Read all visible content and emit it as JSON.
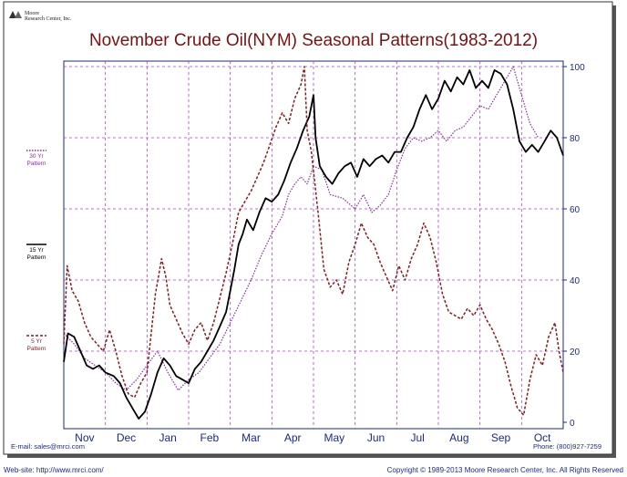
{
  "logo": {
    "line1": "Moore",
    "line2": "Research Center, Inc."
  },
  "chart_data": {
    "type": "line",
    "title": "November Crude Oil(NYM) Seasonal Patterns(1983-2012)",
    "months": [
      "Nov",
      "Dec",
      "Jan",
      "Feb",
      "Mar",
      "Apr",
      "May",
      "Jun",
      "Jul",
      "Aug",
      "Sep",
      "Oct"
    ],
    "y_ticks": [
      "100",
      "80",
      "60",
      "40",
      "20",
      "0"
    ],
    "ylim": [
      0,
      100
    ],
    "grid": true,
    "series": [
      {
        "name": "30 Yr Pattern",
        "legend_lines": [
          "30 Yr",
          "Pattern"
        ],
        "color": "#8a2aa8",
        "style": "dotted",
        "points": [
          [
            0,
            25
          ],
          [
            0.25,
            22
          ],
          [
            0.5,
            18
          ],
          [
            0.75,
            16
          ],
          [
            1,
            14
          ],
          [
            1.25,
            11
          ],
          [
            1.5,
            9
          ],
          [
            1.75,
            12
          ],
          [
            2,
            16
          ],
          [
            2.25,
            20
          ],
          [
            2.5,
            14
          ],
          [
            2.75,
            9
          ],
          [
            3,
            12
          ],
          [
            3.25,
            14
          ],
          [
            3.5,
            18
          ],
          [
            3.75,
            22
          ],
          [
            4,
            28
          ],
          [
            4.25,
            34
          ],
          [
            4.5,
            40
          ],
          [
            4.75,
            47
          ],
          [
            5,
            53
          ],
          [
            5.25,
            58
          ],
          [
            5.4,
            64
          ],
          [
            5.55,
            67
          ],
          [
            5.7,
            69
          ],
          [
            5.85,
            67
          ],
          [
            6,
            72
          ],
          [
            6.2,
            71
          ],
          [
            6.4,
            64
          ],
          [
            6.7,
            63
          ],
          [
            7,
            60
          ],
          [
            7.2,
            64
          ],
          [
            7.4,
            59
          ],
          [
            7.6,
            61
          ],
          [
            7.8,
            64
          ],
          [
            8,
            71
          ],
          [
            8.2,
            77
          ],
          [
            8.4,
            80
          ],
          [
            8.6,
            79
          ],
          [
            8.8,
            80
          ],
          [
            9,
            82
          ],
          [
            9.2,
            79
          ],
          [
            9.4,
            82
          ],
          [
            9.6,
            83
          ],
          [
            9.8,
            86
          ],
          [
            10,
            89
          ],
          [
            10.2,
            88
          ],
          [
            10.4,
            92
          ],
          [
            10.6,
            96
          ],
          [
            10.8,
            100
          ],
          [
            11,
            92
          ],
          [
            11.2,
            84
          ],
          [
            11.4,
            80
          ]
        ]
      },
      {
        "name": "15 Yr Pattern",
        "legend_lines": [
          "15 Yr",
          "Pattern"
        ],
        "color": "#000000",
        "style": "solid",
        "points": [
          [
            0,
            17
          ],
          [
            0.1,
            25
          ],
          [
            0.25,
            24
          ],
          [
            0.4,
            20
          ],
          [
            0.55,
            16
          ],
          [
            0.7,
            15
          ],
          [
            0.85,
            16
          ],
          [
            1,
            14
          ],
          [
            1.2,
            13
          ],
          [
            1.35,
            11
          ],
          [
            1.5,
            7
          ],
          [
            1.65,
            4
          ],
          [
            1.8,
            1
          ],
          [
            1.95,
            3
          ],
          [
            2.1,
            8
          ],
          [
            2.25,
            14
          ],
          [
            2.4,
            18
          ],
          [
            2.55,
            16
          ],
          [
            2.7,
            13
          ],
          [
            2.85,
            12
          ],
          [
            3,
            11
          ],
          [
            3.15,
            15
          ],
          [
            3.3,
            17
          ],
          [
            3.45,
            20
          ],
          [
            3.6,
            23
          ],
          [
            3.75,
            27
          ],
          [
            3.9,
            31
          ],
          [
            4,
            37
          ],
          [
            4.1,
            43
          ],
          [
            4.2,
            50
          ],
          [
            4.3,
            53
          ],
          [
            4.4,
            57
          ],
          [
            4.55,
            54
          ],
          [
            4.7,
            59
          ],
          [
            4.85,
            63
          ],
          [
            5,
            62
          ],
          [
            5.15,
            64
          ],
          [
            5.3,
            68
          ],
          [
            5.45,
            73
          ],
          [
            5.6,
            77
          ],
          [
            5.75,
            82
          ],
          [
            5.9,
            86
          ],
          [
            6.0,
            92
          ],
          [
            6.05,
            80
          ],
          [
            6.15,
            72
          ],
          [
            6.3,
            69
          ],
          [
            6.45,
            67
          ],
          [
            6.6,
            70
          ],
          [
            6.75,
            72
          ],
          [
            6.9,
            73
          ],
          [
            7.05,
            69
          ],
          [
            7.2,
            74
          ],
          [
            7.35,
            72
          ],
          [
            7.5,
            74
          ],
          [
            7.65,
            75
          ],
          [
            7.8,
            73
          ],
          [
            7.95,
            76
          ],
          [
            8.1,
            76
          ],
          [
            8.25,
            80
          ],
          [
            8.4,
            83
          ],
          [
            8.55,
            88
          ],
          [
            8.7,
            92
          ],
          [
            8.85,
            88
          ],
          [
            9,
            91
          ],
          [
            9.15,
            96
          ],
          [
            9.3,
            93
          ],
          [
            9.45,
            97
          ],
          [
            9.6,
            95
          ],
          [
            9.75,
            99
          ],
          [
            9.9,
            94
          ],
          [
            10.05,
            96
          ],
          [
            10.2,
            94
          ],
          [
            10.35,
            99
          ],
          [
            10.5,
            98
          ],
          [
            10.65,
            95
          ],
          [
            10.8,
            88
          ],
          [
            10.95,
            79
          ],
          [
            11.1,
            76
          ],
          [
            11.25,
            78
          ],
          [
            11.4,
            76
          ],
          [
            11.55,
            79
          ],
          [
            11.7,
            82
          ],
          [
            11.85,
            80
          ],
          [
            12,
            75
          ]
        ]
      },
      {
        "name": "5 Yr Pattern",
        "legend_lines": [
          "5 Yr",
          "Pattern"
        ],
        "color": "#8b1a1a",
        "style": "dashed",
        "points": [
          [
            0,
            22
          ],
          [
            0.08,
            44
          ],
          [
            0.2,
            37
          ],
          [
            0.35,
            34
          ],
          [
            0.5,
            28
          ],
          [
            0.65,
            24
          ],
          [
            0.8,
            22
          ],
          [
            0.95,
            20
          ],
          [
            1.1,
            26
          ],
          [
            1.25,
            20
          ],
          [
            1.4,
            13
          ],
          [
            1.55,
            8
          ],
          [
            1.7,
            7
          ],
          [
            1.85,
            11
          ],
          [
            2,
            14
          ],
          [
            2.1,
            25
          ],
          [
            2.2,
            36
          ],
          [
            2.35,
            46
          ],
          [
            2.45,
            41
          ],
          [
            2.55,
            33
          ],
          [
            2.7,
            29
          ],
          [
            2.85,
            25
          ],
          [
            3,
            22
          ],
          [
            3.15,
            26
          ],
          [
            3.3,
            28
          ],
          [
            3.45,
            23
          ],
          [
            3.6,
            28
          ],
          [
            3.75,
            35
          ],
          [
            3.9,
            42
          ],
          [
            4.05,
            50
          ],
          [
            4.2,
            59
          ],
          [
            4.35,
            62
          ],
          [
            4.5,
            65
          ],
          [
            4.65,
            69
          ],
          [
            4.8,
            73
          ],
          [
            4.95,
            78
          ],
          [
            5.1,
            83
          ],
          [
            5.25,
            87
          ],
          [
            5.4,
            84
          ],
          [
            5.55,
            91
          ],
          [
            5.7,
            95
          ],
          [
            5.78,
            100
          ],
          [
            5.85,
            82
          ],
          [
            5.95,
            76
          ],
          [
            6.1,
            60
          ],
          [
            6.25,
            43
          ],
          [
            6.4,
            38
          ],
          [
            6.55,
            40
          ],
          [
            6.7,
            36
          ],
          [
            6.85,
            45
          ],
          [
            7.0,
            50
          ],
          [
            7.15,
            56
          ],
          [
            7.3,
            52
          ],
          [
            7.45,
            50
          ],
          [
            7.6,
            45
          ],
          [
            7.75,
            41
          ],
          [
            7.9,
            37
          ],
          [
            8.05,
            44
          ],
          [
            8.2,
            40
          ],
          [
            8.35,
            46
          ],
          [
            8.5,
            50
          ],
          [
            8.65,
            56
          ],
          [
            8.8,
            52
          ],
          [
            8.95,
            45
          ],
          [
            9.1,
            36
          ],
          [
            9.25,
            31
          ],
          [
            9.4,
            30
          ],
          [
            9.55,
            29
          ],
          [
            9.7,
            32
          ],
          [
            9.85,
            30
          ],
          [
            10.0,
            33
          ],
          [
            10.15,
            29
          ],
          [
            10.3,
            26
          ],
          [
            10.45,
            22
          ],
          [
            10.6,
            17
          ],
          [
            10.75,
            10
          ],
          [
            10.9,
            4
          ],
          [
            11.05,
            2
          ],
          [
            11.2,
            12
          ],
          [
            11.35,
            19
          ],
          [
            11.5,
            16
          ],
          [
            11.65,
            24
          ],
          [
            11.8,
            28
          ],
          [
            11.9,
            20
          ],
          [
            12,
            14
          ]
        ]
      }
    ]
  },
  "footer": {
    "email": "E-mail: sales@mrci.com",
    "phone": "Phone: (800)927-7259",
    "website": "Web-site: http://www.mrci.com/",
    "copyright": "Copyright © 1989-2013 Moore Research Center, Inc. All Rights Reserved"
  }
}
